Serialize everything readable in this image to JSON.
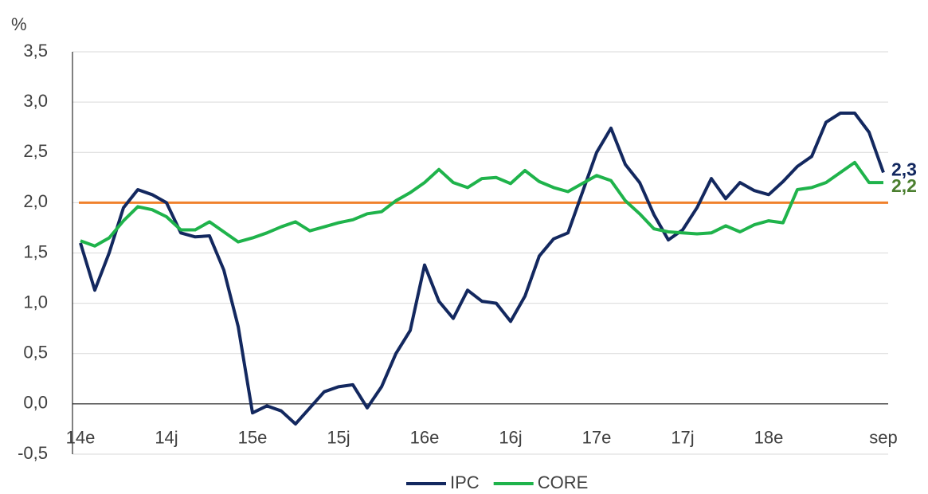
{
  "chart_data": {
    "type": "line",
    "y_unit": "%",
    "categories": [
      "14e",
      null,
      null,
      null,
      null,
      null,
      "14j",
      null,
      null,
      null,
      null,
      null,
      "15e",
      null,
      null,
      null,
      null,
      null,
      "15j",
      null,
      null,
      null,
      null,
      null,
      "16e",
      null,
      null,
      null,
      null,
      null,
      "16j",
      null,
      null,
      null,
      null,
      null,
      "17e",
      null,
      null,
      null,
      null,
      null,
      "17j",
      null,
      null,
      null,
      null,
      null,
      "18e",
      null,
      null,
      null,
      null,
      null,
      null,
      null,
      "sep"
    ],
    "series": [
      {
        "name": "IPC",
        "color": "#13285f",
        "label_color": "#13285f",
        "values": [
          1.6,
          1.13,
          1.5,
          1.95,
          2.13,
          2.08,
          2.0,
          1.7,
          1.66,
          1.67,
          1.33,
          0.77,
          -0.09,
          -0.02,
          -0.07,
          -0.2,
          -0.04,
          0.12,
          0.17,
          0.19,
          -0.04,
          0.17,
          0.5,
          0.73,
          1.38,
          1.02,
          0.85,
          1.13,
          1.02,
          1.0,
          0.82,
          1.07,
          1.47,
          1.64,
          1.7,
          2.1,
          2.5,
          2.74,
          2.38,
          2.2,
          1.88,
          1.63,
          1.73,
          1.95,
          2.24,
          2.04,
          2.2,
          2.12,
          2.08,
          2.21,
          2.36,
          2.46,
          2.8,
          2.89,
          2.89,
          2.7,
          2.3
        ],
        "value_labels": [
          null,
          null,
          null,
          null,
          null,
          null,
          null,
          null,
          null,
          null,
          null,
          null,
          null,
          null,
          null,
          null,
          null,
          null,
          null,
          null,
          null,
          null,
          null,
          null,
          null,
          null,
          null,
          null,
          null,
          null,
          null,
          null,
          null,
          null,
          null,
          null,
          null,
          null,
          null,
          null,
          null,
          null,
          null,
          null,
          null,
          null,
          null,
          null,
          null,
          null,
          null,
          null,
          null,
          null,
          null,
          null,
          "2,3"
        ]
      },
      {
        "name": "CORE",
        "color": "#1fb34b",
        "label_color": "#4b7f2f",
        "values": [
          1.62,
          1.57,
          1.65,
          1.82,
          1.96,
          1.93,
          1.86,
          1.73,
          1.73,
          1.81,
          1.71,
          1.61,
          1.65,
          1.7,
          1.76,
          1.81,
          1.72,
          1.76,
          1.8,
          1.83,
          1.89,
          1.91,
          2.02,
          2.1,
          2.2,
          2.33,
          2.2,
          2.15,
          2.24,
          2.25,
          2.19,
          2.32,
          2.21,
          2.15,
          2.11,
          2.19,
          2.27,
          2.22,
          2.02,
          1.89,
          1.74,
          1.71,
          1.7,
          1.69,
          1.7,
          1.77,
          1.71,
          1.78,
          1.82,
          1.8,
          2.13,
          2.15,
          2.2,
          2.3,
          2.4,
          2.2,
          2.2
        ],
        "value_labels": [
          null,
          null,
          null,
          null,
          null,
          null,
          null,
          null,
          null,
          null,
          null,
          null,
          null,
          null,
          null,
          null,
          null,
          null,
          null,
          null,
          null,
          null,
          null,
          null,
          null,
          null,
          null,
          null,
          null,
          null,
          null,
          null,
          null,
          null,
          null,
          null,
          null,
          null,
          null,
          null,
          null,
          null,
          null,
          null,
          null,
          null,
          null,
          null,
          null,
          null,
          null,
          null,
          null,
          null,
          null,
          null,
          "2,2"
        ]
      }
    ],
    "reference_line": {
      "value": 2.0,
      "color": "#f0812c"
    },
    "ylim": [
      -0.5,
      3.5
    ],
    "yticks": [
      {
        "value": -0.5,
        "label": "-0,5"
      },
      {
        "value": 0,
        "label": "0,0"
      },
      {
        "value": 0.5,
        "label": "0,5"
      },
      {
        "value": 1.0,
        "label": "1,0"
      },
      {
        "value": 1.5,
        "label": "1,5"
      },
      {
        "value": 2.0,
        "label": "2,0"
      },
      {
        "value": 2.5,
        "label": "2,5"
      },
      {
        "value": 3.0,
        "label": "3,0"
      },
      {
        "value": 3.5,
        "label": "3,5"
      }
    ],
    "grid": true,
    "legend": "bottom"
  }
}
